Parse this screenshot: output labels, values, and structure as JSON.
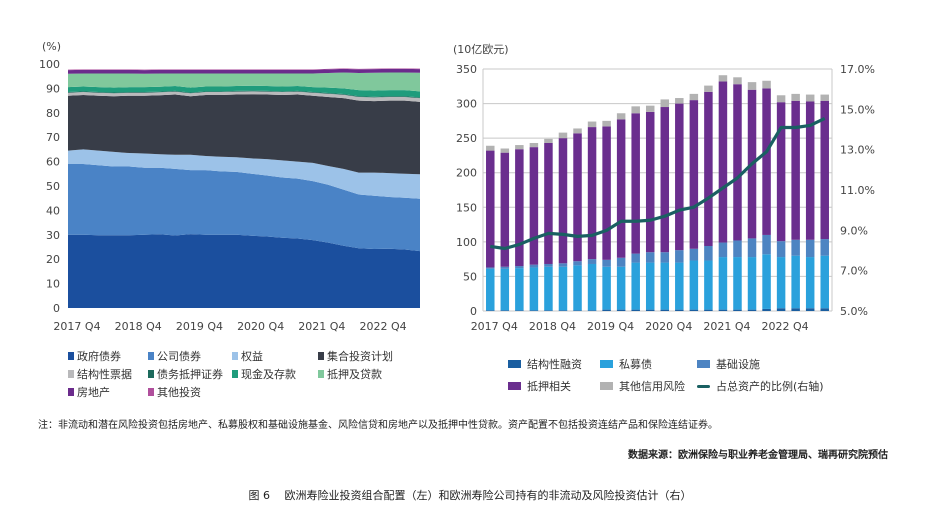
{
  "chart_data": [
    {
      "type": "area",
      "stacked": true,
      "ylabel": "(%)",
      "ylim": [
        0,
        100
      ],
      "yticks": [
        "0",
        "10",
        "20",
        "30",
        "40",
        "50",
        "60",
        "70",
        "80",
        "90",
        "100"
      ],
      "grid": false,
      "legend_position": "bottom",
      "categories": [
        "2017 Q4",
        "2018 Q1",
        "2018 Q2",
        "2018 Q3",
        "2018 Q4",
        "2019 Q1",
        "2019 Q2",
        "2019 Q3",
        "2019 Q4",
        "2020 Q1",
        "2020 Q2",
        "2020 Q3",
        "2020 Q4",
        "2021 Q1",
        "2021 Q2",
        "2021 Q3",
        "2021 Q4",
        "2022 Q1",
        "2022 Q2",
        "2022 Q3",
        "2022 Q4",
        "2023 Q1",
        "2023 Q2",
        "2023 Q3"
      ],
      "xtick_labels": [
        "2017 Q4",
        "2018 Q4",
        "2019 Q4",
        "2020 Q4",
        "2021 Q4",
        "2022 Q4"
      ],
      "series": [
        {
          "name": "政府债券",
          "color": "#1b4f9e",
          "values": [
            30,
            30,
            29.8,
            29.8,
            29.8,
            30,
            30.2,
            29.7,
            30.3,
            30,
            30,
            30,
            29.6,
            29.3,
            28.8,
            28.5,
            27.8,
            26.8,
            25.5,
            24.5,
            24.2,
            24.3,
            24,
            23.3
          ]
        },
        {
          "name": "公司债券",
          "color": "#4a83c6",
          "values": [
            29,
            29,
            28.7,
            28.2,
            28.2,
            27.5,
            27.3,
            27.3,
            26.2,
            26.5,
            26,
            25.8,
            25.4,
            25,
            24.7,
            24.5,
            24.2,
            23.7,
            23,
            22,
            21.8,
            21.2,
            21.2,
            21.5
          ]
        },
        {
          "name": "权益",
          "color": "#9cc2e8",
          "values": [
            5.5,
            6,
            6,
            6,
            5.5,
            5.8,
            5.5,
            5.8,
            6.3,
            5.8,
            6,
            6,
            6.3,
            6.7,
            7,
            7,
            7.5,
            7.7,
            8.5,
            9,
            9.5,
            9.8,
            9.8,
            10
          ]
        },
        {
          "name": "集合投资计划",
          "color": "#383d48",
          "values": [
            22.5,
            22.3,
            22.5,
            22.8,
            23.5,
            23.7,
            24.2,
            24.7,
            24,
            25,
            25.3,
            25.7,
            26.3,
            26.5,
            26.8,
            27.5,
            27.5,
            28.3,
            29,
            29.5,
            29.3,
            29.7,
            30,
            29.7
          ]
        },
        {
          "name": "结构性票据",
          "color": "#b9b9bb",
          "values": [
            1.2,
            1.2,
            1.2,
            1.2,
            1.2,
            1.2,
            1.2,
            1.2,
            1.2,
            1.2,
            1.2,
            1.2,
            1.2,
            1.2,
            1.2,
            1.2,
            1.2,
            1.3,
            1.4,
            1.5,
            1.5,
            1.5,
            1.5,
            1.5
          ]
        },
        {
          "name": "债务抵押证券",
          "color": "#1c6a5c",
          "values": [
            0.3,
            0.3,
            0.3,
            0.3,
            0.3,
            0.3,
            0.3,
            0.3,
            0.3,
            0.3,
            0.3,
            0.3,
            0.3,
            0.3,
            0.3,
            0.3,
            0.3,
            0.3,
            0.3,
            0.3,
            0.3,
            0.3,
            0.3,
            0.3
          ]
        },
        {
          "name": "现金及存款",
          "color": "#1f9c7c",
          "values": [
            2,
            2,
            2,
            2,
            2,
            2,
            2,
            2,
            2,
            2,
            2,
            2,
            2,
            2,
            2,
            2,
            2,
            2.2,
            2.3,
            2.5,
            2.5,
            2.5,
            2.5,
            2.5
          ]
        },
        {
          "name": "抵押及贷款",
          "color": "#80c89c",
          "values": [
            5.5,
            5.3,
            5.6,
            5.8,
            5.6,
            5.5,
            5.4,
            5.1,
            5.8,
            5.3,
            5.3,
            5.1,
            5,
            5.1,
            5.3,
            5.1,
            5.6,
            6,
            6.5,
            7,
            7.3,
            7.2,
            7.2,
            7.6
          ]
        },
        {
          "name": "房地产",
          "color": "#6b2b8c",
          "values": [
            1.5,
            1.5,
            1.5,
            1.5,
            1.5,
            1.5,
            1.5,
            1.5,
            1.5,
            1.5,
            1.5,
            1.5,
            1.5,
            1.5,
            1.5,
            1.5,
            1.5,
            1.5,
            1.5,
            1.5,
            1.5,
            1.5,
            1.5,
            1.5
          ]
        },
        {
          "name": "其他投资",
          "color": "#b04f9c",
          "values": [
            0.2,
            0.2,
            0.2,
            0.2,
            0.2,
            0.2,
            0.2,
            0.2,
            0.2,
            0.2,
            0.2,
            0.2,
            0.2,
            0.2,
            0.2,
            0.2,
            0.2,
            0.2,
            0.2,
            0.2,
            0.2,
            0.2,
            0.2,
            0.2
          ]
        }
      ]
    },
    {
      "type": "bar",
      "stacked": true,
      "ylabel": "(10亿欧元)",
      "ylim": [
        0,
        350
      ],
      "yticks": [
        "0",
        "50",
        "100",
        "150",
        "200",
        "250",
        "300",
        "350"
      ],
      "y2lim": [
        5.0,
        17.0
      ],
      "y2ticks": [
        "5.0%",
        "7.0%",
        "9.0%",
        "11.0%",
        "13.0%",
        "15.0%",
        "17.0%"
      ],
      "grid": true,
      "legend_position": "bottom",
      "categories": [
        "2017 Q4",
        "2018 Q1",
        "2018 Q2",
        "2018 Q3",
        "2018 Q4",
        "2019 Q1",
        "2019 Q2",
        "2019 Q3",
        "2019 Q4",
        "2020 Q1",
        "2020 Q2",
        "2020 Q3",
        "2020 Q4",
        "2021 Q1",
        "2021 Q2",
        "2021 Q3",
        "2021 Q4",
        "2022 Q1",
        "2022 Q2",
        "2022 Q3",
        "2022 Q4",
        "2023 Q1",
        "2023 Q2",
        "2023 Q3"
      ],
      "xtick_labels": [
        "2017 Q4",
        "2018 Q4",
        "2019 Q4",
        "2020 Q4",
        "2021 Q4",
        "2022 Q4"
      ],
      "series": [
        {
          "name": "结构性融资",
          "color": "#1a5ea0",
          "values": [
            1,
            1,
            1,
            1,
            1,
            1,
            1,
            1,
            2,
            2,
            2,
            2,
            2,
            2,
            2,
            2,
            2,
            2,
            2,
            3,
            4,
            4,
            4,
            4
          ]
        },
        {
          "name": "私募债",
          "color": "#2aa1dc",
          "values": [
            60,
            60,
            61,
            62,
            63,
            63,
            65,
            67,
            62,
            62,
            68,
            68,
            68,
            68,
            71,
            71,
            76,
            76,
            76,
            79,
            74,
            76,
            74,
            76
          ]
        },
        {
          "name": "基础设施",
          "color": "#4d84c2",
          "values": [
            2,
            3,
            3,
            4,
            4,
            5,
            6,
            7,
            10,
            13,
            13,
            15,
            15,
            18,
            17,
            21,
            21,
            24,
            27,
            28,
            23,
            23,
            25,
            24
          ]
        },
        {
          "name": "抵押相关",
          "color": "#6a2e8e",
          "values": [
            169,
            165,
            169,
            170,
            175,
            181,
            185,
            191,
            193,
            200,
            203,
            203,
            210,
            212,
            215,
            223,
            233,
            226,
            215,
            212,
            201,
            201,
            200,
            200
          ]
        },
        {
          "name": "其他信用风险",
          "color": "#b2b2b2",
          "values": [
            7,
            6,
            6,
            6,
            6,
            8,
            7,
            8,
            8,
            9,
            10,
            9,
            11,
            8,
            9,
            9,
            9,
            10,
            11,
            11,
            10,
            10,
            10,
            9
          ]
        }
      ],
      "line": {
        "name": "占总资产的比例(右轴)",
        "color": "#1a6062",
        "axis": "right",
        "values": [
          8.2,
          8.1,
          8.3,
          8.6,
          8.85,
          8.8,
          8.7,
          8.75,
          9.0,
          9.45,
          9.45,
          9.5,
          9.7,
          10.0,
          10.15,
          10.6,
          11.1,
          11.6,
          12.3,
          12.9,
          14.1,
          14.1,
          14.2,
          14.55
        ]
      }
    }
  ],
  "note": "注：非流动和潜在风险投资包括房地产、私募股权和基础设施基金、风险信贷和房地产以及抵押中性贷款。资产配置不包括投资连结产品和保险连结证券。",
  "source": "数据来源：欧洲保险与职业养老金管理局、瑞再研究院预估",
  "caption": "图 6　 欧洲寿险业投资组合配置（左）和欧洲寿险公司持有的非流动及风险投资估计（右）"
}
